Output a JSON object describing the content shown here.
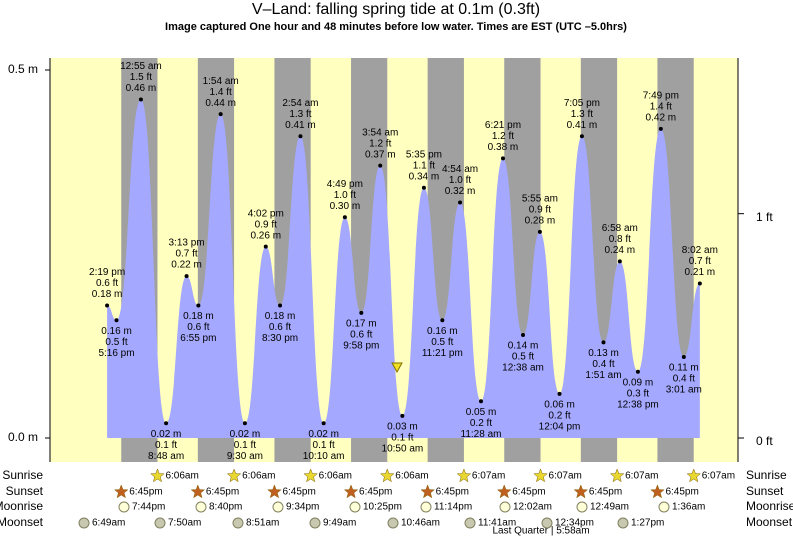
{
  "chart_data": {
    "type": "area",
    "title": "V–Land: falling  spring tide at 0.1m (0.3ft)",
    "subtitle": "Image captured One hour and 48 minutes before low water. Times are EST (UTC –5.0hrs)",
    "ylim": [
      -0.0326,
      0.5163
    ],
    "yticks": [
      {
        "value": 0,
        "label": "0.0 m"
      },
      {
        "value": 0.5,
        "label": "0.5 m"
      }
    ],
    "y2lim": [
      -0.107,
      1.694
    ],
    "y2ticks": [
      {
        "value": 0,
        "label": "0 ft"
      },
      {
        "value": 1,
        "label": "1 ft"
      }
    ],
    "x": [
      "2:19 pm",
      "5:16 pm",
      "12:55 am",
      "8:48 am",
      "3:13 pm",
      "6:55 pm",
      "1:54 am",
      "9:30 am",
      "4:02 pm",
      "8:30 pm",
      "2:54 am",
      "10:10 am",
      "4:49 pm",
      "9:58 pm",
      "3:54 am",
      "10:50 am",
      "5:35 pm",
      "11:21 pm",
      "4:54 am",
      "11:28 am",
      "6:21 pm",
      "12:38 am",
      "5:55 am",
      "12:04 pm",
      "7:05 pm",
      "1:51 am",
      "6:58 am",
      "12:38 pm",
      "7:49 pm",
      "3:01 am",
      "8:02 am"
    ],
    "series": [
      {
        "color": "#a4a8ff",
        "values": [
          0.18,
          0.16,
          0.46,
          0.02,
          0.22,
          0.18,
          0.44,
          0.02,
          0.26,
          0.18,
          0.41,
          0.02,
          0.3,
          0.17,
          0.37,
          0.03,
          0.34,
          0.16,
          0.32,
          0.05,
          0.38,
          0.14,
          0.28,
          0.06,
          0.41,
          0.13,
          0.24,
          0.09,
          0.42,
          0.11,
          0.21
        ],
        "value_labels": [
          "0.18 m",
          "0.16 m",
          "0.46 m",
          "0.02 m",
          "0.22 m",
          "0.18 m",
          "0.44 m",
          "0.02 m",
          "0.26 m",
          "0.18 m",
          "0.41 m",
          "0.02 m",
          "0.30 m",
          "0.17 m",
          "0.37 m",
          "0.03 m",
          "0.34 m",
          "0.16 m",
          "0.32 m",
          "0.05 m",
          "0.38 m",
          "0.14 m",
          "0.28 m",
          "0.06 m",
          "0.41 m",
          "0.13 m",
          "0.24 m",
          "0.09 m",
          "0.42 m",
          "0.11 m",
          "0.21 m"
        ],
        "ft_labels": [
          "0.6 ft",
          "0.5 ft",
          "1.5 ft",
          "0.1 ft",
          "0.7 ft",
          "0.6 ft",
          "1.4 ft",
          "0.1 ft",
          "0.9 ft",
          "0.6 ft",
          "1.3 ft",
          "0.1 ft",
          "1.0 ft",
          "0.6 ft",
          "1.2 ft",
          "0.1 ft",
          "1.1 ft",
          "0.5 ft",
          "1.0 ft",
          "0.2 ft",
          "1.2 ft",
          "0.5 ft",
          "0.9 ft",
          "0.2 ft",
          "1.3 ft",
          "0.4 ft",
          "0.8 ft",
          "0.3 ft",
          "1.4 ft",
          "0.4 ft",
          "0.7 ft"
        ]
      }
    ],
    "rows": [
      {
        "label": "Sunrise",
        "times": [
          "6:06am",
          "6:06am",
          "6:06am",
          "6:06am",
          "6:07am",
          "6:07am",
          "6:07am",
          "6:07am"
        ]
      },
      {
        "label": "Sunset",
        "times": [
          "6:45pm",
          "6:45pm",
          "6:45pm",
          "6:45pm",
          "6:45pm",
          "6:45pm",
          "6:45pm",
          "6:45pm"
        ]
      },
      {
        "label": "Moonrise",
        "times": [
          "7:44pm",
          "8:40pm",
          "9:34pm",
          "10:25pm",
          "11:14pm",
          "12:02am",
          "12:49am",
          "1:36am"
        ]
      },
      {
        "label": "Moonset",
        "times": [
          "6:49am",
          "7:50am",
          "8:51am",
          "9:49am",
          "10:46am",
          "11:41am",
          "12:34pm",
          "1:27pm"
        ]
      }
    ],
    "moon_phase": "Last Quarter | 5:58am"
  }
}
